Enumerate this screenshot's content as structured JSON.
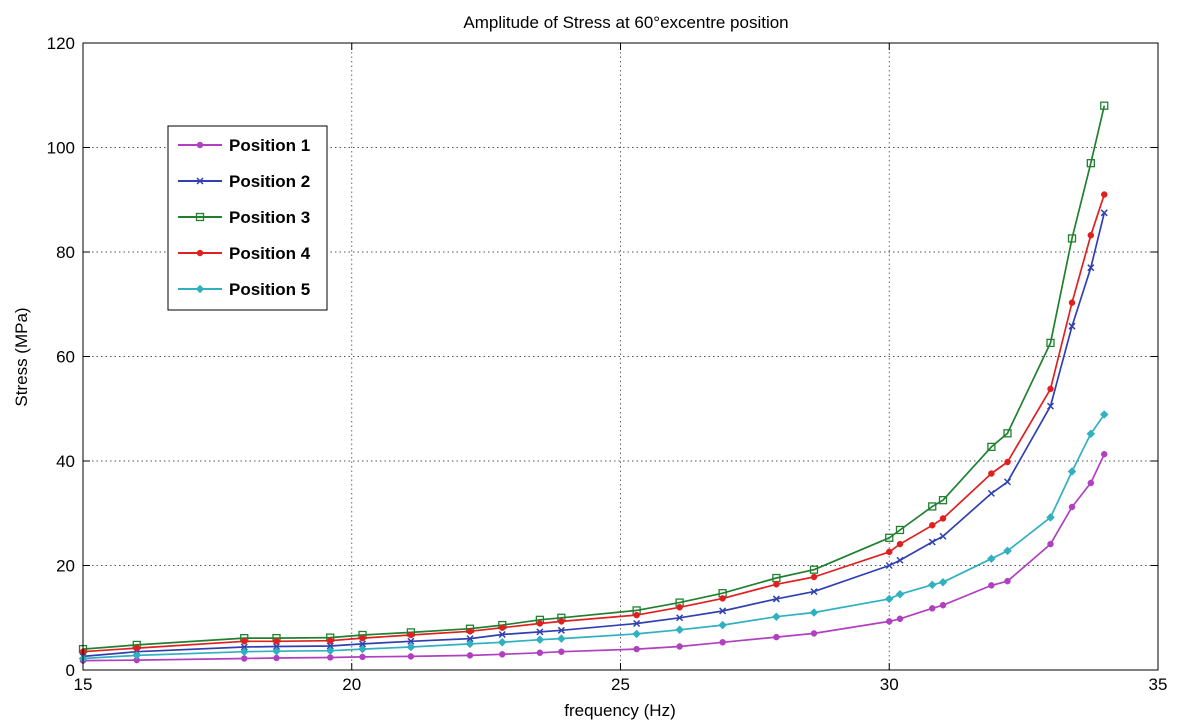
{
  "chart_data": {
    "type": "line",
    "title": "Amplitude of Stress at 60°excentre position",
    "xlabel": "frequency (Hz)",
    "ylabel": "Stress (MPa)",
    "xlim": [
      15,
      35
    ],
    "ylim": [
      0,
      120
    ],
    "xticks": [
      15,
      20,
      25,
      30,
      35
    ],
    "yticks": [
      0,
      20,
      40,
      60,
      80,
      100,
      120
    ],
    "grid": true,
    "legend_position": "upper-left",
    "series": [
      {
        "name": "Position 1",
        "color": "#b040c0",
        "marker": "dot",
        "x": [
          15,
          16,
          18,
          18.6,
          19.6,
          20.2,
          21.1,
          22.2,
          22.8,
          23.5,
          23.9,
          25.3,
          26.1,
          26.9,
          27.9,
          28.6,
          30.0,
          30.2,
          30.8,
          31.0,
          31.9,
          32.2,
          33.0,
          33.4,
          33.75,
          34.0
        ],
        "y": [
          1.8,
          1.9,
          2.2,
          2.3,
          2.4,
          2.5,
          2.6,
          2.8,
          3.0,
          3.3,
          3.5,
          4.0,
          4.5,
          5.3,
          6.3,
          7.0,
          9.3,
          9.8,
          11.8,
          12.4,
          16.2,
          17.0,
          24.1,
          31.2,
          35.8,
          41.3
        ]
      },
      {
        "name": "Position 2",
        "color": "#3040b0",
        "marker": "x",
        "x": [
          15,
          16,
          18,
          18.6,
          19.6,
          20.2,
          21.1,
          22.2,
          22.8,
          23.5,
          23.9,
          25.3,
          26.1,
          26.9,
          27.9,
          28.6,
          30.0,
          30.2,
          30.8,
          31.0,
          31.9,
          32.2,
          33.0,
          33.4,
          33.75,
          34.0
        ],
        "y": [
          2.6,
          3.5,
          4.4,
          4.5,
          4.6,
          5.0,
          5.5,
          6.0,
          6.8,
          7.3,
          7.6,
          8.9,
          10.0,
          11.3,
          13.6,
          15.0,
          20.0,
          21.0,
          24.5,
          25.6,
          33.8,
          36.0,
          50.5,
          65.8,
          77.0,
          87.5
        ]
      },
      {
        "name": "Position 3",
        "color": "#208030",
        "marker": "square",
        "x": [
          15,
          16,
          18,
          18.6,
          19.6,
          20.2,
          21.1,
          22.2,
          22.8,
          23.5,
          23.9,
          25.3,
          26.1,
          26.9,
          27.9,
          28.6,
          30.0,
          30.2,
          30.8,
          31.0,
          31.9,
          32.2,
          33.0,
          33.4,
          33.75,
          34.0
        ],
        "y": [
          4.0,
          4.8,
          6.1,
          6.1,
          6.2,
          6.7,
          7.2,
          7.9,
          8.6,
          9.6,
          10.0,
          11.4,
          12.9,
          14.7,
          17.6,
          19.2,
          25.3,
          26.8,
          31.3,
          32.5,
          42.7,
          45.3,
          62.6,
          82.6,
          97.0,
          108.0
        ]
      },
      {
        "name": "Position 4",
        "color": "#e02020",
        "marker": "dot",
        "x": [
          15,
          16,
          18,
          18.6,
          19.6,
          20.2,
          21.1,
          22.2,
          22.8,
          23.5,
          23.9,
          25.3,
          26.1,
          26.9,
          27.9,
          28.6,
          30.0,
          30.2,
          30.8,
          31.0,
          31.9,
          32.2,
          33.0,
          33.4,
          33.75,
          34.0
        ],
        "y": [
          3.5,
          4.2,
          5.5,
          5.5,
          5.6,
          6.1,
          6.7,
          7.4,
          8.1,
          8.9,
          9.3,
          10.5,
          12.0,
          13.7,
          16.4,
          17.8,
          22.6,
          24.1,
          27.7,
          29.0,
          37.6,
          39.8,
          53.8,
          70.3,
          83.2,
          91.0
        ]
      },
      {
        "name": "Position 5",
        "color": "#30b0c0",
        "marker": "diamond",
        "x": [
          15,
          16,
          18,
          18.6,
          19.6,
          20.2,
          21.1,
          22.2,
          22.8,
          23.5,
          23.9,
          25.3,
          26.1,
          26.9,
          27.9,
          28.6,
          30.0,
          30.2,
          30.8,
          31.0,
          31.9,
          32.2,
          33.0,
          33.4,
          33.75,
          34.0
        ],
        "y": [
          2.2,
          2.8,
          3.5,
          3.6,
          3.7,
          4.0,
          4.4,
          5.0,
          5.3,
          5.8,
          6.0,
          6.9,
          7.7,
          8.6,
          10.2,
          11.0,
          13.6,
          14.5,
          16.3,
          16.8,
          21.3,
          22.8,
          29.2,
          38.0,
          45.2,
          48.9
        ]
      }
    ]
  }
}
